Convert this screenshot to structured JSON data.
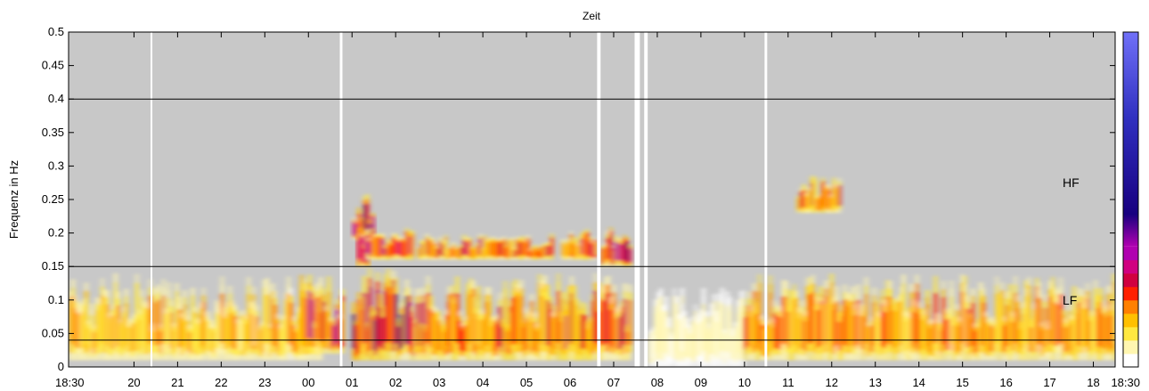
{
  "chart_data": {
    "type": "heatmap",
    "title": "Zeit",
    "xlabel": "",
    "ylabel": "Frequenz in Hz",
    "ylim": [
      0,
      0.5
    ],
    "y_ticks": [
      0,
      0.05,
      0.1,
      0.15,
      0.2,
      0.25,
      0.3,
      0.35,
      0.4,
      0.45,
      0.5
    ],
    "y_tick_labels": [
      "0",
      "0.05",
      "0.1",
      "0.15",
      "0.2",
      "0.25",
      "0.3",
      "0.35",
      "0.4",
      "0.45",
      "0.5"
    ],
    "x_range_hours": [
      18.5,
      42.5
    ],
    "x_ticks_hours": [
      18.5,
      20,
      21,
      22,
      23,
      24,
      25,
      26,
      27,
      28,
      29,
      30,
      31,
      32,
      33,
      34,
      35,
      36,
      37,
      38,
      39,
      40,
      41,
      42,
      42.5
    ],
    "x_tick_labels": [
      "18:30",
      "20",
      "21",
      "22",
      "23",
      "00",
      "01",
      "02",
      "03",
      "04",
      "05",
      "06",
      "07",
      "08",
      "09",
      "10",
      "11",
      "12",
      "13",
      "14",
      "15",
      "16",
      "17",
      "18",
      "18:30"
    ],
    "reference_lines_hz": [
      0.04,
      0.15,
      0.4
    ],
    "band_labels": [
      {
        "text": "HF",
        "y_hz": 0.275
      },
      {
        "text": "LF",
        "y_hz": 0.1
      }
    ],
    "background_color": "#c8c8c8",
    "colorbar": [
      "#ffffff",
      "#fff6b0",
      "#ffe840",
      "#ffc000",
      "#ff8000",
      "#ff2000",
      "#d00040",
      "#d00080",
      "#b000b0",
      "#180080",
      "#3030c0",
      "#5858e0",
      "#7070f8"
    ],
    "gaps_hours": [
      {
        "start": 20.38,
        "end": 20.42,
        "y_max_hz": 0.5
      },
      {
        "start": 24.72,
        "end": 24.78,
        "y_max_hz": 0.5
      },
      {
        "start": 30.62,
        "end": 30.7,
        "y_max_hz": 0.5
      },
      {
        "start": 31.48,
        "end": 31.6,
        "y_max_hz": 0.5
      },
      {
        "start": 31.7,
        "end": 31.78,
        "y_max_hz": 0.5
      },
      {
        "start": 34.46,
        "end": 34.52,
        "y_max_hz": 0.5
      }
    ],
    "blobs": [
      {
        "x0": 18.5,
        "x1": 24.3,
        "y0": 0.01,
        "y1": 0.14,
        "peak": 0.35
      },
      {
        "x0": 23.8,
        "x1": 24.8,
        "y0": 0.02,
        "y1": 0.14,
        "peak": 0.7
      },
      {
        "x0": 25.0,
        "x1": 25.5,
        "y0": 0.19,
        "y1": 0.26,
        "peak": 0.85
      },
      {
        "x0": 25.1,
        "x1": 25.4,
        "y0": 0.15,
        "y1": 0.21,
        "peak": 0.95
      },
      {
        "x0": 25.3,
        "x1": 26.4,
        "y0": 0.16,
        "y1": 0.21,
        "peak": 0.65
      },
      {
        "x0": 25.0,
        "x1": 26.4,
        "y0": 0.01,
        "y1": 0.15,
        "peak": 0.75
      },
      {
        "x0": 26.5,
        "x1": 29.6,
        "y0": 0.16,
        "y1": 0.2,
        "peak": 0.55
      },
      {
        "x0": 29.8,
        "x1": 30.6,
        "y0": 0.16,
        "y1": 0.21,
        "peak": 0.6
      },
      {
        "x0": 30.7,
        "x1": 31.4,
        "y0": 0.15,
        "y1": 0.21,
        "peak": 0.75
      },
      {
        "x0": 26.4,
        "x1": 31.4,
        "y0": 0.01,
        "y1": 0.14,
        "peak": 0.55
      },
      {
        "x0": 31.8,
        "x1": 34.0,
        "y0": 0.0,
        "y1": 0.12,
        "peak": 0.1
      },
      {
        "x0": 34.0,
        "x1": 42.5,
        "y0": 0.01,
        "y1": 0.14,
        "peak": 0.45
      },
      {
        "x0": 35.2,
        "x1": 36.2,
        "y0": 0.23,
        "y1": 0.29,
        "peak": 0.5
      }
    ]
  }
}
